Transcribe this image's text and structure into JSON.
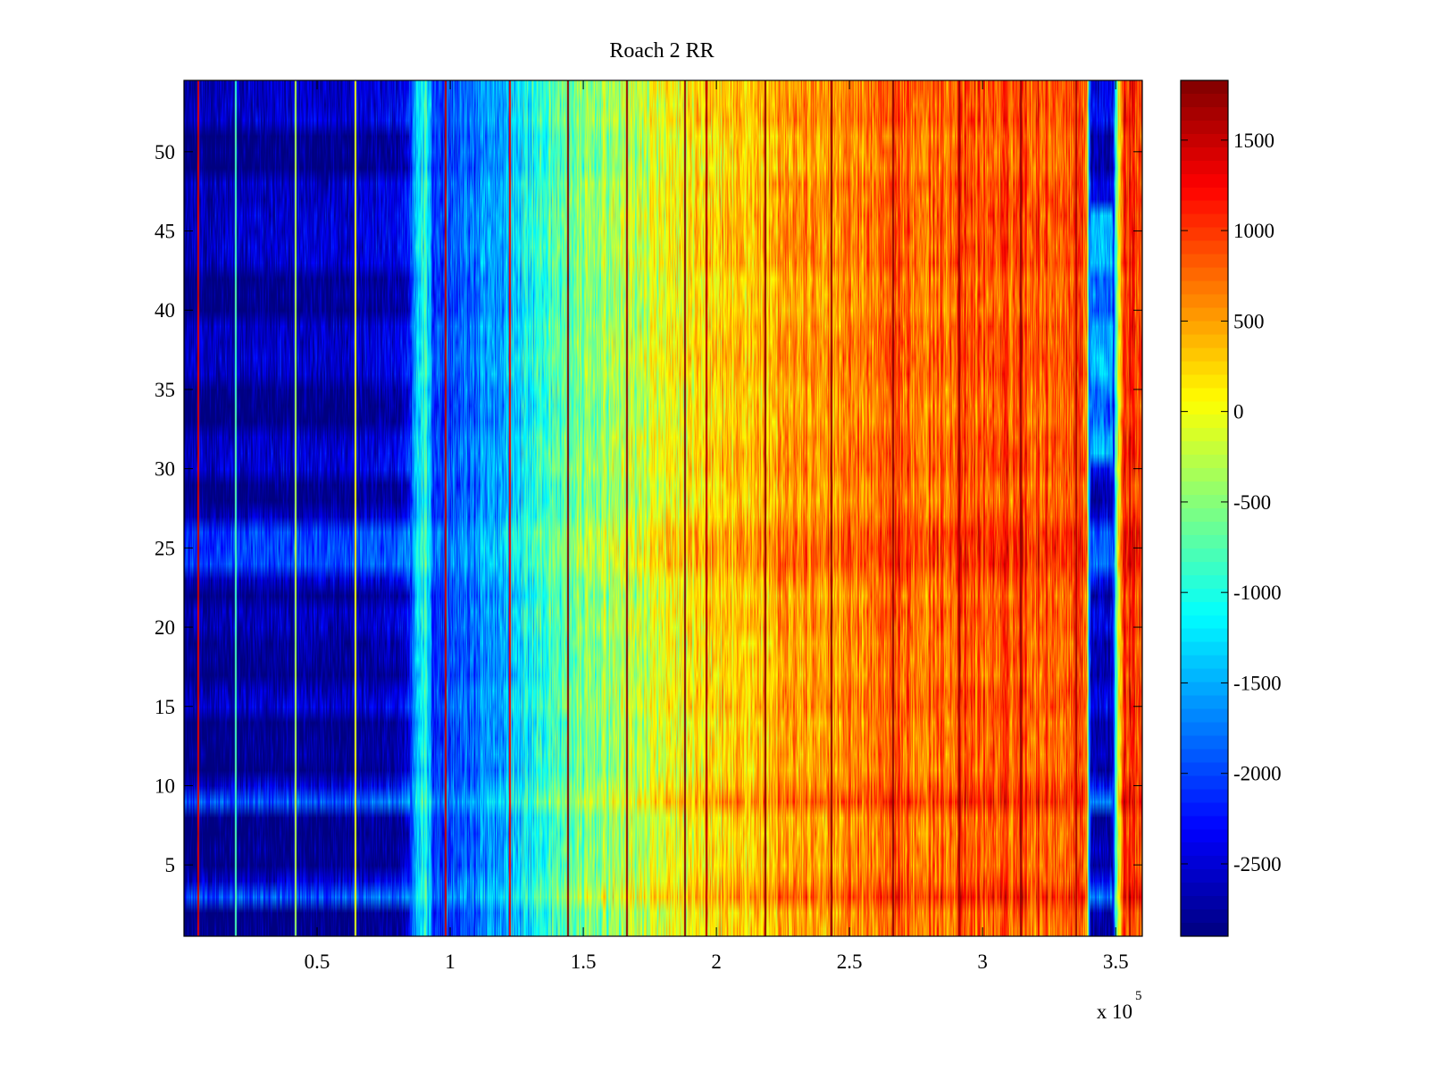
{
  "chart_data": {
    "type": "heatmap",
    "title": "Roach 2 RR",
    "xlabel": "",
    "ylabel": "",
    "x_exponent_label": "x 10",
    "x_exponent_power": "5",
    "xlim": [
      0,
      360000
    ],
    "ylim": [
      0.5,
      54.5
    ],
    "x_ticks": [
      50000,
      100000,
      150000,
      200000,
      250000,
      300000,
      350000
    ],
    "x_tick_labels": [
      "0.5",
      "1",
      "1.5",
      "2",
      "2.5",
      "3",
      "3.5"
    ],
    "y_ticks": [
      5,
      10,
      15,
      20,
      25,
      30,
      35,
      40,
      45,
      50
    ],
    "y_tick_labels": [
      "5",
      "10",
      "15",
      "20",
      "25",
      "30",
      "35",
      "40",
      "45",
      "50"
    ],
    "rows": 54,
    "colorbar": {
      "colormap": "jet",
      "clim": [
        -2900,
        1830
      ],
      "ticks": [
        -2500,
        -2000,
        -1500,
        -1000,
        -500,
        0,
        500,
        1000,
        1500
      ],
      "tick_labels": [
        "-2500",
        "-2000",
        "-1500",
        "-1000",
        "-500",
        "0",
        "500",
        "1000",
        "1500"
      ]
    },
    "column_profile": [
      {
        "x": 0,
        "value": -2650
      },
      {
        "x": 20000,
        "value": -2600
      },
      {
        "x": 40000,
        "value": -2550
      },
      {
        "x": 60000,
        "value": -2500
      },
      {
        "x": 80000,
        "value": -2450
      },
      {
        "x": 85000,
        "value": -2100
      },
      {
        "x": 88000,
        "value": -1000
      },
      {
        "x": 91000,
        "value": -1050
      },
      {
        "x": 94000,
        "value": -2000
      },
      {
        "x": 110000,
        "value": -1750
      },
      {
        "x": 120000,
        "value": -1450
      },
      {
        "x": 130000,
        "value": -1050
      },
      {
        "x": 140000,
        "value": -700
      },
      {
        "x": 160000,
        "value": -350
      },
      {
        "x": 180000,
        "value": -50
      },
      {
        "x": 200000,
        "value": 250
      },
      {
        "x": 230000,
        "value": 550
      },
      {
        "x": 260000,
        "value": 750
      },
      {
        "x": 300000,
        "value": 900
      },
      {
        "x": 335000,
        "value": 950
      },
      {
        "x": 339000,
        "value": 950
      },
      {
        "x": 340500,
        "value": -2350
      },
      {
        "x": 349000,
        "value": -2350
      },
      {
        "x": 350000,
        "value": -800
      },
      {
        "x": 352500,
        "value": 1050
      },
      {
        "x": 360000,
        "value": 1100
      }
    ],
    "dark_rows": [
      1,
      2,
      5,
      6,
      7,
      8,
      11,
      12,
      13,
      14,
      17,
      18,
      19,
      22,
      28,
      29,
      33,
      34,
      35,
      40,
      41,
      42,
      49,
      50,
      51
    ],
    "light_rows": [
      3,
      9,
      24,
      25,
      26
    ],
    "vertical_lines": [
      {
        "x": 5000,
        "value": 1400
      },
      {
        "x": 19000,
        "value": -800
      },
      {
        "x": 41500,
        "value": -300
      },
      {
        "x": 64000,
        "value": 0
      },
      {
        "x": 98000,
        "value": 1500
      },
      {
        "x": 122000,
        "value": 1300
      },
      {
        "x": 144000,
        "value": 1800
      },
      {
        "x": 166000,
        "value": 1700
      },
      {
        "x": 188000,
        "value": 1750
      },
      {
        "x": 196000,
        "value": 1600
      },
      {
        "x": 218000,
        "value": 1800
      },
      {
        "x": 243000,
        "value": 1750
      },
      {
        "x": 266000,
        "value": 1750
      },
      {
        "x": 291000,
        "value": 1700
      },
      {
        "x": 314000,
        "value": 1750
      },
      {
        "x": 335000,
        "value": 1600
      }
    ]
  }
}
